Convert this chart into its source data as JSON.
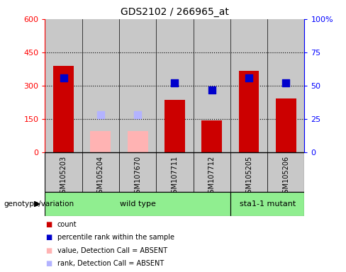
{
  "title": "GDS2102 / 266965_at",
  "samples": [
    "GSM105203",
    "GSM105204",
    "GSM107670",
    "GSM107711",
    "GSM107712",
    "GSM105205",
    "GSM105206"
  ],
  "count_values": [
    390,
    null,
    null,
    235,
    143,
    368,
    243
  ],
  "count_absent_values": [
    null,
    95,
    95,
    null,
    null,
    null,
    null
  ],
  "percentile_values": [
    56,
    null,
    null,
    52,
    47,
    56,
    52
  ],
  "percentile_absent_values": [
    null,
    28,
    28,
    null,
    null,
    null,
    null
  ],
  "left_ylim": [
    0,
    600
  ],
  "left_yticks": [
    0,
    150,
    300,
    450,
    600
  ],
  "right_ylim": [
    0,
    100
  ],
  "right_yticks": [
    0,
    25,
    50,
    75,
    100
  ],
  "right_yticklabels": [
    "0",
    "25",
    "50",
    "75",
    "100%"
  ],
  "bar_color": "#cc0000",
  "absent_bar_color": "#ffb3b3",
  "dot_color": "#0000cc",
  "absent_dot_color": "#b3b3ff",
  "wild_type_label": "wild type",
  "mutant_label": "sta1-1 mutant",
  "genotype_label": "genotype/variation",
  "group_box_color": "#90ee90",
  "sample_box_color": "#c8c8c8",
  "legend_items": [
    {
      "color": "#cc0000",
      "label": "count"
    },
    {
      "color": "#0000cc",
      "label": "percentile rank within the sample"
    },
    {
      "color": "#ffb3b3",
      "label": "value, Detection Call = ABSENT"
    },
    {
      "color": "#b3b3ff",
      "label": "rank, Detection Call = ABSENT"
    }
  ],
  "bar_width": 0.55,
  "dot_size": 55,
  "figsize": [
    4.88,
    3.84
  ],
  "dpi": 100
}
